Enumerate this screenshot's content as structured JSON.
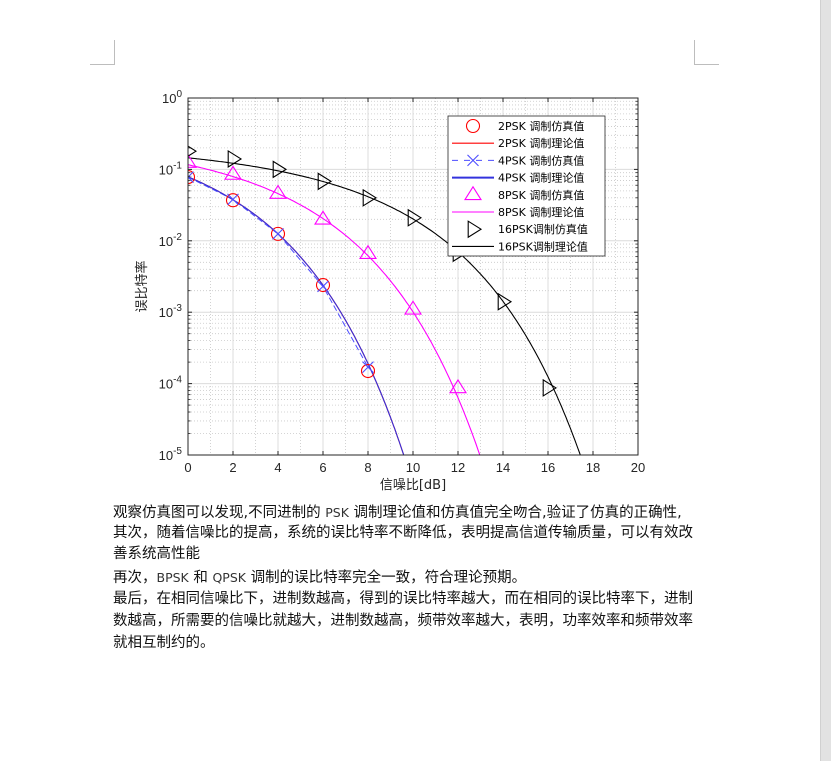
{
  "document": {
    "paragraphs": [
      {
        "parts": [
          {
            "t": "观察仿真图可以发现,不同进制的 "
          },
          {
            "t": "PSK",
            "latin": true
          },
          {
            "t": " 调制理论值和仿真值完全吻合,验证了仿真的正确性,"
          }
        ]
      },
      {
        "parts": [
          {
            "t": "其次，随着信噪比的提高，系统的误比特率不断降低，表明提高信道传输质量，可以有效改"
          }
        ]
      },
      {
        "parts": [
          {
            "t": "善系统高性能"
          }
        ]
      },
      {
        "parts": [
          {
            "t": "再次，"
          },
          {
            "t": "BPSK",
            "latin": true
          },
          {
            "t": " 和 "
          },
          {
            "t": "QPSK",
            "latin": true
          },
          {
            "t": " 调制的误比特率完全一致，符合理论预期。"
          }
        ]
      },
      {
        "parts": [
          {
            "t": "最后，在相同信噪比下，进制数越高，得到的误比特率越大，而在相同的误比特率下，进制"
          }
        ]
      },
      {
        "parts": [
          {
            "t": "数越高，所需要的信噪比就越大，进制数越高，频带效率越大，表明，功率效率和频带效率"
          }
        ]
      },
      {
        "parts": [
          {
            "t": "就相互制约的。"
          }
        ]
      }
    ]
  },
  "chart_data": {
    "type": "line",
    "title": "",
    "xlabel": "信噪比[dB]",
    "ylabel": "误比特率",
    "xlim": [
      0,
      20
    ],
    "ylim": [
      1e-05,
      1
    ],
    "yscale": "log",
    "xticks": [
      "0",
      "2",
      "4",
      "6",
      "8",
      "10",
      "12",
      "14",
      "16",
      "18",
      "20"
    ],
    "yticks": [
      "10^0",
      "10^-1",
      "10^-2",
      "10^-3",
      "10^-4",
      "10^-5"
    ],
    "grid": true,
    "minor_grid": true,
    "legend_position": "upper right",
    "series": [
      {
        "name": "2PSK 调制仿真值",
        "kind": "markers",
        "marker": "circle",
        "color": "#ff0000",
        "x": [
          0,
          2,
          4,
          6,
          8
        ],
        "y": [
          0.078,
          0.037,
          0.0125,
          0.0024,
          0.00015
        ]
      },
      {
        "name": "2PSK 调制理论值",
        "kind": "line",
        "dash": "solid",
        "color": "#ff0000",
        "theory": "bpsk"
      },
      {
        "name": "4PSK 调制仿真值",
        "kind": "line+markers",
        "marker": "x",
        "dash": "dashed",
        "color": "#4d4dff",
        "x": [
          0,
          2,
          4,
          6,
          8
        ],
        "y": [
          0.078,
          0.038,
          0.0125,
          0.0023,
          0.00017
        ]
      },
      {
        "name": "4PSK 调制理论值",
        "kind": "line",
        "dash": "solid",
        "color": "#3333dd",
        "theory": "bpsk"
      },
      {
        "name": "8PSK 调制仿真值",
        "kind": "markers",
        "marker": "triangle-up",
        "color": "#ff00ff",
        "x": [
          0,
          2,
          4,
          6,
          8,
          10,
          12
        ],
        "y": [
          0.125,
          0.085,
          0.046,
          0.02,
          0.0066,
          0.0011,
          8.7e-05
        ]
      },
      {
        "name": "8PSK 调制理论值",
        "kind": "line",
        "dash": "solid",
        "color": "#ff00ff",
        "theory": "mpsk8"
      },
      {
        "name": "16PSK调制仿真值",
        "kind": "markers",
        "marker": "triangle-right",
        "color": "#000000",
        "x": [
          0,
          2,
          4,
          6,
          8,
          10,
          12,
          14,
          16
        ],
        "y": [
          0.18,
          0.14,
          0.1,
          0.068,
          0.04,
          0.021,
          0.0067,
          0.0014,
          8.7e-05
        ]
      },
      {
        "name": "16PSK调制理论值",
        "kind": "line",
        "dash": "solid",
        "color": "#000000",
        "theory": "mpsk16"
      }
    ]
  }
}
